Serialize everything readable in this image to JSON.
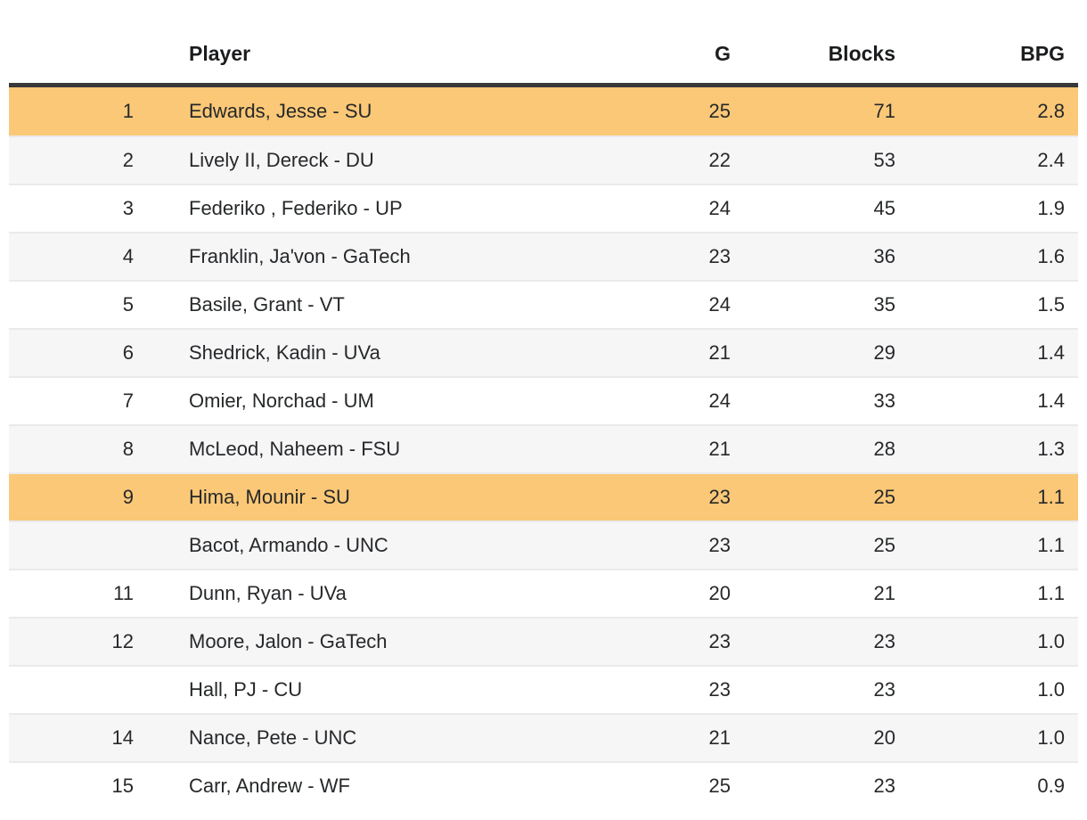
{
  "table": {
    "title": "blocks-leaderboard",
    "columns": {
      "rank_label": "",
      "player_label": "Player",
      "games_label": "G",
      "blocks_label": "Blocks",
      "bpg_label": "BPG"
    },
    "style": {
      "highlight_color": "#fbc877",
      "alt_row_color": "#f6f6f7",
      "header_rule_color": "#383838",
      "row_divider_color": "#e9eaeb",
      "text_color": "#26282a"
    },
    "rows": [
      {
        "rank": "1",
        "player": "Edwards, Jesse - SU",
        "g": "25",
        "blocks": "71",
        "bpg": "2.8",
        "highlighted": true
      },
      {
        "rank": "2",
        "player": "Lively II, Dereck - DU",
        "g": "22",
        "blocks": "53",
        "bpg": "2.4",
        "highlighted": false
      },
      {
        "rank": "3",
        "player": "Federiko , Federiko - UP",
        "g": "24",
        "blocks": "45",
        "bpg": "1.9",
        "highlighted": false
      },
      {
        "rank": "4",
        "player": "Franklin, Ja'von - GaTech",
        "g": "23",
        "blocks": "36",
        "bpg": "1.6",
        "highlighted": false
      },
      {
        "rank": "5",
        "player": "Basile, Grant - VT",
        "g": "24",
        "blocks": "35",
        "bpg": "1.5",
        "highlighted": false
      },
      {
        "rank": "6",
        "player": "Shedrick, Kadin - UVa",
        "g": "21",
        "blocks": "29",
        "bpg": "1.4",
        "highlighted": false
      },
      {
        "rank": "7",
        "player": "Omier, Norchad - UM",
        "g": "24",
        "blocks": "33",
        "bpg": "1.4",
        "highlighted": false
      },
      {
        "rank": "8",
        "player": "McLeod, Naheem - FSU",
        "g": "21",
        "blocks": "28",
        "bpg": "1.3",
        "highlighted": false
      },
      {
        "rank": "9",
        "player": "Hima, Mounir - SU",
        "g": "23",
        "blocks": "25",
        "bpg": "1.1",
        "highlighted": true
      },
      {
        "rank": "",
        "player": "Bacot, Armando - UNC",
        "g": "23",
        "blocks": "25",
        "bpg": "1.1",
        "highlighted": false
      },
      {
        "rank": "11",
        "player": "Dunn, Ryan - UVa",
        "g": "20",
        "blocks": "21",
        "bpg": "1.1",
        "highlighted": false
      },
      {
        "rank": "12",
        "player": "Moore, Jalon - GaTech",
        "g": "23",
        "blocks": "23",
        "bpg": "1.0",
        "highlighted": false
      },
      {
        "rank": "",
        "player": "Hall, PJ - CU",
        "g": "23",
        "blocks": "23",
        "bpg": "1.0",
        "highlighted": false
      },
      {
        "rank": "14",
        "player": "Nance, Pete - UNC",
        "g": "21",
        "blocks": "20",
        "bpg": "1.0",
        "highlighted": false
      },
      {
        "rank": "15",
        "player": "Carr, Andrew - WF",
        "g": "25",
        "blocks": "23",
        "bpg": "0.9",
        "highlighted": false
      }
    ]
  }
}
